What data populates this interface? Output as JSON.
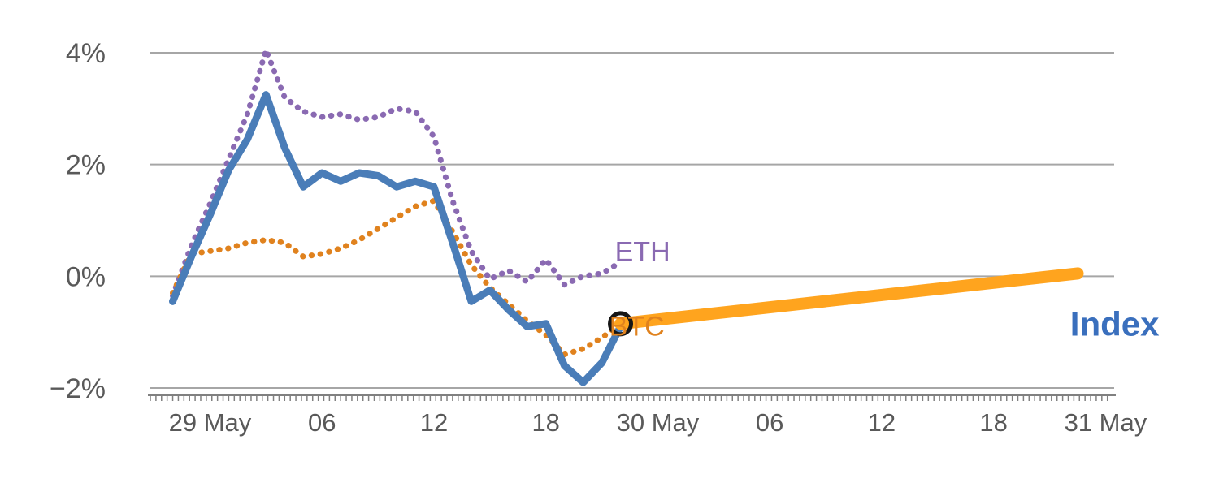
{
  "chart_data": {
    "type": "line",
    "title": "",
    "colors": {
      "background": "#ffffff",
      "grid": "#a6a6a6",
      "axis": "#808080",
      "axis_text": "#595959"
    },
    "x_axis": {
      "unit": "hour",
      "range_hours": [
        -3.2,
        48.2
      ],
      "tick_hours": [
        0,
        6,
        12,
        18,
        24,
        30,
        36,
        42,
        48
      ],
      "tick_labels": [
        "29 May",
        "06",
        "12",
        "18",
        "30 May",
        "06",
        "12",
        "18",
        "31 May"
      ],
      "minor_tick_step": 0.3
    },
    "y_axis": {
      "range": [
        -2,
        4
      ],
      "ticks": [
        -2,
        0,
        2,
        4
      ],
      "tick_labels": [
        "−2%",
        "0%",
        "2%",
        "4%"
      ],
      "grid": true
    },
    "series": [
      {
        "id": "eth",
        "name": "ETH",
        "color": "#8a6ab2",
        "style": "dotted",
        "width": 7,
        "x": [
          -2,
          -1,
          0,
          1,
          2,
          3,
          4,
          5,
          6,
          7,
          8,
          9,
          10,
          11,
          12,
          13,
          14,
          15,
          16,
          17,
          18,
          19,
          20,
          21,
          22
        ],
        "y": [
          -0.35,
          0.55,
          1.3,
          2.1,
          2.9,
          4.05,
          3.2,
          2.95,
          2.85,
          2.9,
          2.8,
          2.85,
          3.0,
          2.95,
          2.5,
          1.35,
          0.45,
          -0.05,
          0.1,
          -0.1,
          0.3,
          -0.15,
          0.0,
          0.05,
          0.25
        ]
      },
      {
        "id": "btc-history",
        "name": "BTC",
        "color": "#e0821e",
        "style": "dotted",
        "width": 7,
        "x": [
          -2,
          -1,
          0,
          1,
          2,
          3,
          4,
          5,
          6,
          7,
          8,
          9,
          10,
          11,
          12,
          13,
          14,
          15,
          16,
          17,
          18,
          19,
          20,
          21,
          22
        ],
        "y": [
          -0.3,
          0.4,
          0.45,
          0.5,
          0.6,
          0.65,
          0.6,
          0.35,
          0.4,
          0.5,
          0.65,
          0.85,
          1.05,
          1.25,
          1.35,
          0.8,
          0.2,
          -0.2,
          -0.5,
          -0.8,
          -1.05,
          -1.4,
          -1.3,
          -1.1,
          -0.85
        ]
      },
      {
        "id": "index",
        "name": "Index",
        "color": "#4a7db8",
        "style": "solid",
        "width": 9,
        "x": [
          -2,
          -1,
          0,
          1,
          2,
          3,
          4,
          5,
          6,
          7,
          8,
          9,
          10,
          11,
          12,
          13,
          14,
          15,
          16,
          17,
          18,
          19,
          20,
          21,
          22
        ],
        "y": [
          -0.45,
          0.35,
          1.1,
          1.9,
          2.45,
          3.25,
          2.3,
          1.6,
          1.85,
          1.7,
          1.85,
          1.8,
          1.6,
          1.7,
          1.6,
          0.6,
          -0.45,
          -0.25,
          -0.6,
          -0.9,
          -0.85,
          -1.6,
          -1.9,
          -1.55,
          -0.9
        ]
      },
      {
        "id": "btc-live",
        "name": "BTC",
        "color": "#ffa41e",
        "style": "solid",
        "width": 15,
        "x": [
          22,
          46.5
        ],
        "y": [
          -0.85,
          0.05
        ]
      }
    ],
    "marker": {
      "id": "btc-current-point",
      "x_hour": 22,
      "y_val": -0.85,
      "radius": 13,
      "color": "#161616",
      "stroke_width": 5
    },
    "annotations": [
      {
        "id": "eth",
        "text": "ETH",
        "color": "#8a6ab2",
        "x_hour": 21.7,
        "y_val": 0.27,
        "size": 34,
        "bold": false
      },
      {
        "id": "btc",
        "text": "BTC",
        "color": "#e0821e",
        "x_hour": 21.4,
        "y_val": -1.06,
        "size": 34,
        "bold": false
      },
      {
        "id": "index",
        "text": "Index",
        "color": "#3a6fbd",
        "x_hour": 46.1,
        "y_val": -1.06,
        "size": 42,
        "bold": true
      }
    ],
    "legend_position": "inline-labels"
  }
}
